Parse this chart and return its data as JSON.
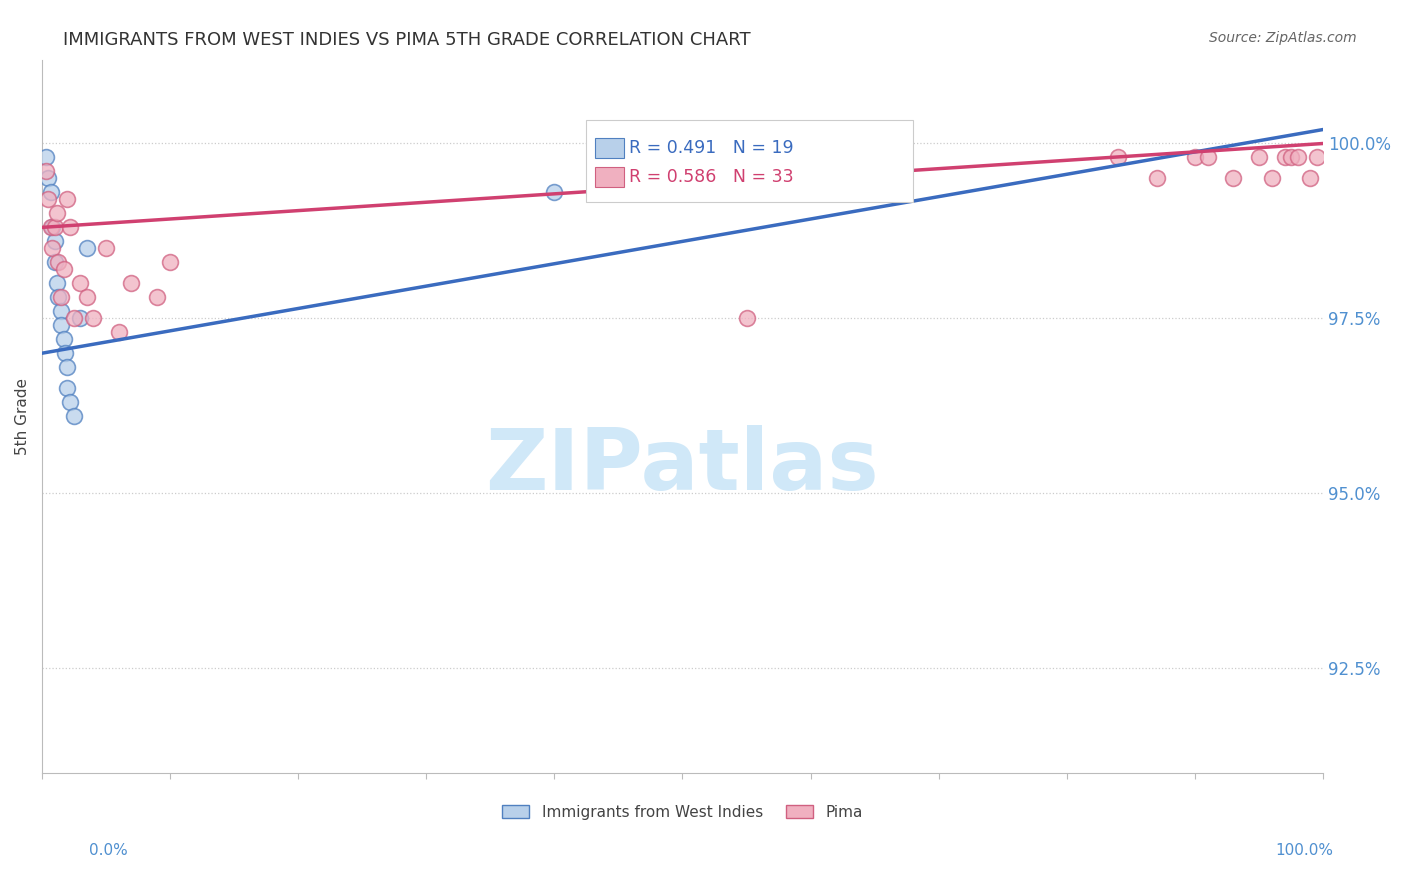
{
  "title": "IMMIGRANTS FROM WEST INDIES VS PIMA 5TH GRADE CORRELATION CHART",
  "source": "Source: ZipAtlas.com",
  "ylabel": "5th Grade",
  "ytick_values": [
    92.5,
    95.0,
    97.5,
    100.0
  ],
  "xlim": [
    0.0,
    100.0
  ],
  "ylim": [
    91.0,
    101.2
  ],
  "legend_label1": "Immigrants from West Indies",
  "legend_label2": "Pima",
  "R1": 0.491,
  "N1": 19,
  "R2": 0.586,
  "N2": 33,
  "blue_color": "#b8d0ea",
  "blue_edge_color": "#5080c0",
  "blue_line_color": "#3a6bbf",
  "pink_color": "#f0b0c0",
  "pink_edge_color": "#d06080",
  "pink_line_color": "#d04070",
  "blue_scatter_x": [
    0.3,
    0.5,
    0.7,
    0.8,
    1.0,
    1.0,
    1.2,
    1.3,
    1.5,
    1.5,
    1.7,
    1.8,
    2.0,
    2.0,
    2.2,
    2.5,
    3.0,
    3.5,
    40.0
  ],
  "blue_scatter_y": [
    99.8,
    99.5,
    99.3,
    98.8,
    98.6,
    98.3,
    98.0,
    97.8,
    97.6,
    97.4,
    97.2,
    97.0,
    96.8,
    96.5,
    96.3,
    96.1,
    97.5,
    98.5,
    99.3
  ],
  "pink_scatter_x": [
    0.3,
    0.5,
    0.7,
    0.8,
    1.0,
    1.2,
    1.3,
    1.5,
    1.7,
    2.0,
    2.2,
    2.5,
    3.0,
    3.5,
    4.0,
    5.0,
    6.0,
    7.0,
    9.0,
    10.0,
    55.0,
    84.0,
    87.0,
    90.0,
    91.0,
    93.0,
    95.0,
    96.0,
    97.0,
    97.5,
    98.0,
    99.0,
    99.5
  ],
  "pink_scatter_y": [
    99.6,
    99.2,
    98.8,
    98.5,
    98.8,
    99.0,
    98.3,
    97.8,
    98.2,
    99.2,
    98.8,
    97.5,
    98.0,
    97.8,
    97.5,
    98.5,
    97.3,
    98.0,
    97.8,
    98.3,
    97.5,
    99.8,
    99.5,
    99.8,
    99.8,
    99.5,
    99.8,
    99.5,
    99.8,
    99.8,
    99.8,
    99.5,
    99.8
  ],
  "blue_trendline_x": [
    0.0,
    100.0
  ],
  "blue_trendline_y": [
    97.0,
    100.2
  ],
  "pink_trendline_x": [
    0.0,
    100.0
  ],
  "pink_trendline_y": [
    98.8,
    100.0
  ],
  "watermark_text": "ZIPatlas",
  "watermark_color": "#d0e8f8",
  "background_color": "#ffffff",
  "grid_color": "#cccccc",
  "label_color": "#5090d0",
  "title_color": "#333333",
  "source_color": "#666666"
}
